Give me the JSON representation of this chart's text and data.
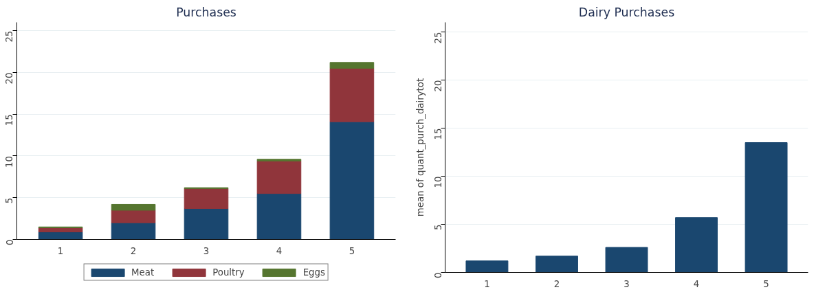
{
  "chart_data": [
    {
      "type": "bar",
      "title": "Purchases",
      "categories": [
        "1",
        "2",
        "3",
        "4",
        "5"
      ],
      "stacked": true,
      "series": [
        {
          "name": "Meat",
          "color": "#1a476f",
          "values": [
            0.9,
            2.0,
            3.7,
            5.5,
            14.1
          ]
        },
        {
          "name": "Poultry",
          "color": "#90353b",
          "values": [
            0.5,
            1.5,
            2.4,
            3.9,
            6.4
          ]
        },
        {
          "name": "Eggs",
          "color": "#55752f",
          "values": [
            0.1,
            0.7,
            0.1,
            0.2,
            0.7
          ]
        }
      ],
      "ylim": [
        0,
        26
      ],
      "yticks": [
        0,
        5,
        10,
        15,
        20,
        25
      ],
      "grid": "y",
      "legend": "bottom"
    },
    {
      "type": "bar",
      "title": "Dairy Purchases",
      "ylabel": "mean of quant_purch_dairytot",
      "categories": [
        "1",
        "2",
        "3",
        "4",
        "5"
      ],
      "series": [
        {
          "color": "#1a476f",
          "values": [
            1.2,
            1.7,
            2.6,
            5.7,
            13.5
          ]
        }
      ],
      "ylim": [
        0,
        26
      ],
      "yticks": [
        0,
        5,
        10,
        15,
        20,
        25
      ],
      "grid": "y"
    }
  ]
}
